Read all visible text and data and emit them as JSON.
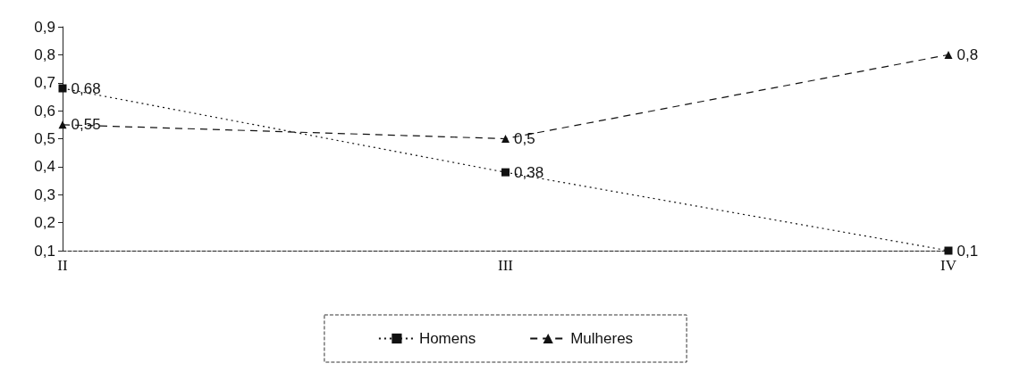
{
  "chart_data": {
    "type": "line",
    "categories": [
      "II",
      "III",
      "IV"
    ],
    "series": [
      {
        "name": "Homens",
        "color": "#111111",
        "marker": "square",
        "line_style": "dotted",
        "values": [
          0.68,
          0.38,
          0.1
        ],
        "value_labels": [
          "0,68",
          "0,38",
          "0,1"
        ]
      },
      {
        "name": "Mulheres",
        "color": "#111111",
        "marker": "triangle",
        "line_style": "dashed",
        "values": [
          0.55,
          0.5,
          0.8
        ],
        "value_labels": [
          "0,55",
          "0,5",
          "0,8"
        ]
      }
    ],
    "ylim": [
      0.1,
      0.9
    ],
    "yticks": [
      {
        "value": 0.1,
        "label": "0,1"
      },
      {
        "value": 0.2,
        "label": "0,2"
      },
      {
        "value": 0.3,
        "label": "0,3"
      },
      {
        "value": 0.4,
        "label": "0,4"
      },
      {
        "value": 0.5,
        "label": "0,5"
      },
      {
        "value": 0.6,
        "label": "0,6"
      },
      {
        "value": 0.7,
        "label": "0,7"
      },
      {
        "value": 0.8,
        "label": "0,8"
      },
      {
        "value": 0.9,
        "label": "0,9"
      }
    ],
    "grid": false,
    "legend": "bottom"
  }
}
